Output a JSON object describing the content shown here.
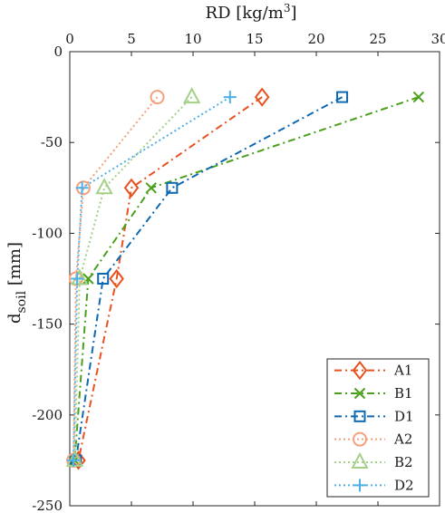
{
  "chart_data": {
    "type": "line",
    "xlabel": "RD [kg/m",
    "xlabel_sup": "3",
    "xlabel_close": "]",
    "ylabel": "d",
    "ylabel_sub": "soil",
    "ylabel_unit": " [mm]",
    "xlim": [
      0,
      30
    ],
    "ylim": [
      -250,
      0
    ],
    "xticks": [
      0,
      5,
      10,
      15,
      20,
      25,
      30
    ],
    "yticks": [
      0,
      -50,
      -100,
      -150,
      -200,
      -250
    ],
    "grid": false,
    "legend_position": "bottom-right",
    "series": [
      {
        "name": "A1",
        "color": "#e8521f",
        "dash": "8,4,2,4",
        "marker": "diamond",
        "points": [
          [
            15.6,
            -25
          ],
          [
            5.0,
            -75
          ],
          [
            3.8,
            -125
          ],
          [
            0.7,
            -225
          ]
        ]
      },
      {
        "name": "B1",
        "color": "#4aa01b",
        "dash": "8,4,2,4",
        "marker": "x",
        "points": [
          [
            28.3,
            -25
          ],
          [
            6.6,
            -75
          ],
          [
            1.5,
            -125
          ],
          [
            0.4,
            -225
          ]
        ]
      },
      {
        "name": "D1",
        "color": "#0e69b3",
        "dash": "8,4,2,4",
        "marker": "square",
        "points": [
          [
            22.1,
            -25
          ],
          [
            8.3,
            -75
          ],
          [
            2.7,
            -125
          ],
          [
            0.5,
            -225
          ]
        ]
      },
      {
        "name": "A2",
        "color": "#f4a07d",
        "dash": "2,3",
        "marker": "circle",
        "points": [
          [
            7.1,
            -25
          ],
          [
            1.1,
            -75
          ],
          [
            0.5,
            -125
          ],
          [
            0.3,
            -225
          ]
        ]
      },
      {
        "name": "B2",
        "color": "#a4d088",
        "dash": "2,3",
        "marker": "triangle",
        "points": [
          [
            9.9,
            -25
          ],
          [
            2.8,
            -75
          ],
          [
            0.8,
            -125
          ],
          [
            0.4,
            -225
          ]
        ]
      },
      {
        "name": "D2",
        "color": "#4fb0e8",
        "dash": "2,3",
        "marker": "plus",
        "points": [
          [
            13.0,
            -25
          ],
          [
            1.0,
            -75
          ],
          [
            0.6,
            -125
          ],
          [
            0.3,
            -225
          ]
        ]
      }
    ]
  }
}
